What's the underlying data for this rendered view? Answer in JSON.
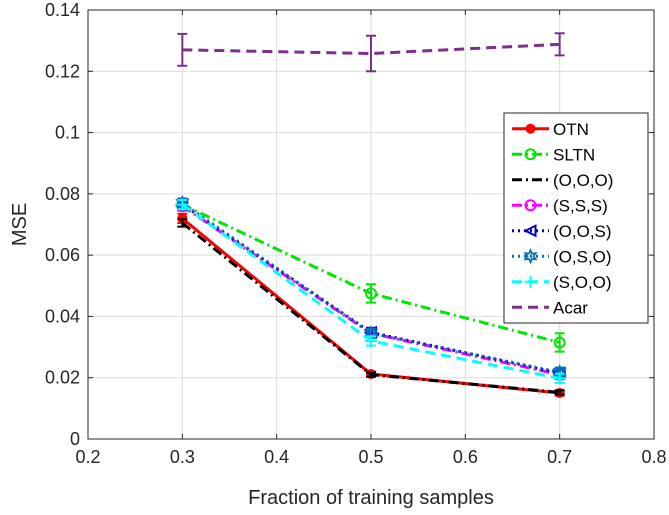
{
  "chart_data": {
    "type": "line",
    "title": "",
    "xlabel": "Fraction of training samples",
    "ylabel": "MSE",
    "xlim": [
      0.2,
      0.8
    ],
    "ylim": [
      0,
      0.14
    ],
    "xticks": [
      0.2,
      0.3,
      0.4,
      0.5,
      0.6,
      0.7,
      0.8
    ],
    "yticks": [
      0,
      0.02,
      0.04,
      0.06,
      0.08,
      0.1,
      0.12,
      0.14
    ],
    "xtick_labels": [
      "0.2",
      "0.3",
      "0.4",
      "0.5",
      "0.6",
      "0.7",
      "0.8"
    ],
    "ytick_labels": [
      "0",
      "0.02",
      "0.04",
      "0.06",
      "0.08",
      "0.1",
      "0.12",
      "0.14"
    ],
    "grid": true,
    "legend_position": "right",
    "series": [
      {
        "name": "OTN",
        "color": "#ff0000",
        "dash": "solid",
        "marker": "dot",
        "x": [
          0.3,
          0.5,
          0.7
        ],
        "y": [
          0.072,
          0.0212,
          0.015
        ],
        "err": [
          0.0015,
          0.0008,
          0.0008
        ]
      },
      {
        "name": "SLTN",
        "color": "#00e600",
        "dash": "dashdot",
        "marker": "circle",
        "x": [
          0.3,
          0.5,
          0.7
        ],
        "y": [
          0.0765,
          0.0475,
          0.0315
        ],
        "err": [
          0.0015,
          0.003,
          0.003
        ]
      },
      {
        "name": "(O,O,O)",
        "color": "#000000",
        "dash": "dashdot",
        "marker": "none",
        "x": [
          0.3,
          0.5,
          0.7
        ],
        "y": [
          0.0705,
          0.021,
          0.0152
        ],
        "err": [
          0.0012,
          0.0007,
          0.0007
        ]
      },
      {
        "name": "(S,S,S)",
        "color": "#ff00ff",
        "dash": "dashdot",
        "marker": "circle",
        "x": [
          0.3,
          0.5,
          0.7
        ],
        "y": [
          0.076,
          0.0345,
          0.021
        ],
        "err": [
          0.0015,
          0.0015,
          0.0015
        ]
      },
      {
        "name": "(O,O,S)",
        "color": "#0000cc",
        "dash": "dotted",
        "marker": "triangle-left",
        "x": [
          0.3,
          0.5,
          0.7
        ],
        "y": [
          0.0765,
          0.0348,
          0.0215
        ],
        "err": [
          0.0015,
          0.0015,
          0.0015
        ]
      },
      {
        "name": "(O,S,O)",
        "color": "#0072bd",
        "dash": "dotted",
        "marker": "hexagram",
        "x": [
          0.3,
          0.5,
          0.7
        ],
        "y": [
          0.077,
          0.0345,
          0.0218
        ],
        "err": [
          0.0015,
          0.0015,
          0.0015
        ]
      },
      {
        "name": "(S,O,O)",
        "color": "#00ffff",
        "dash": "dashed",
        "marker": "plus",
        "x": [
          0.3,
          0.5,
          0.7
        ],
        "y": [
          0.0765,
          0.032,
          0.0198
        ],
        "err": [
          0.0015,
          0.0015,
          0.0015
        ]
      },
      {
        "name": "Acar",
        "color": "#7e2f8e",
        "dash": "dashed",
        "marker": "none",
        "x": [
          0.3,
          0.5,
          0.7
        ],
        "y": [
          0.127,
          0.1258,
          0.1288
        ],
        "err": [
          0.0052,
          0.0058,
          0.0036
        ]
      }
    ]
  }
}
